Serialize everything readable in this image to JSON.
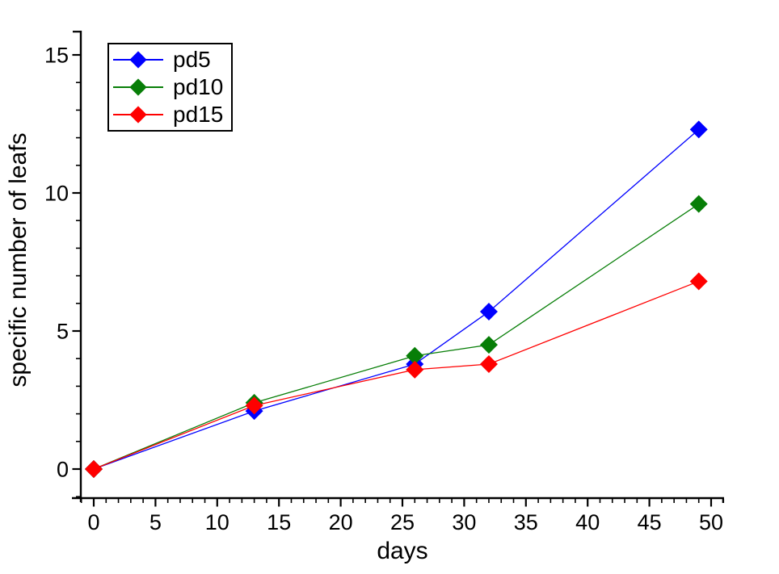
{
  "chart_data": {
    "type": "line",
    "title": "",
    "xlabel": "days",
    "ylabel": "specific number of leafs",
    "x": [
      0,
      13,
      26,
      32,
      49
    ],
    "series": [
      {
        "name": "pd5",
        "color": "#0000ff",
        "values": [
          0,
          2.1,
          3.8,
          5.7,
          12.3
        ]
      },
      {
        "name": "pd10",
        "color": "#077e07",
        "values": [
          0,
          2.4,
          4.1,
          4.5,
          9.6
        ]
      },
      {
        "name": "pd15",
        "color": "#ff0000",
        "values": [
          0,
          2.3,
          3.6,
          3.8,
          6.8
        ]
      }
    ],
    "xlim": [
      -1.8,
      51.2
    ],
    "ylim": [
      -1.2,
      15.9
    ],
    "x_major_ticks": [
      0,
      5,
      10,
      15,
      20,
      25,
      30,
      35,
      40,
      45,
      50
    ],
    "y_major_ticks": [
      0,
      5,
      10,
      15
    ],
    "x_minor_step": 1,
    "y_minor_step": 1,
    "grid": false,
    "legend_position": "top-left",
    "marker": "diamond",
    "background_color": "#ffffff",
    "axis_color": "#000000"
  }
}
